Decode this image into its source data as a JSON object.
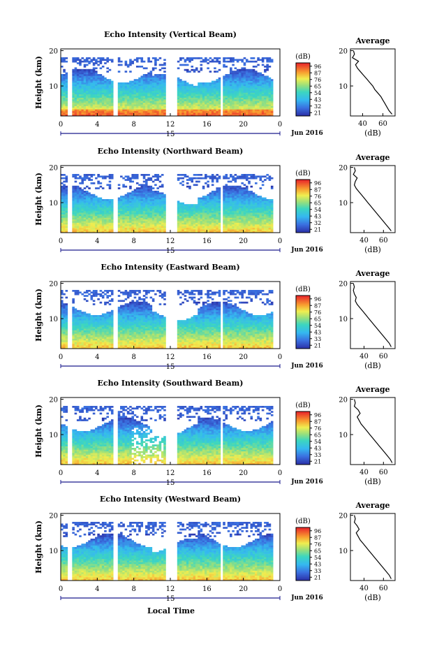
{
  "figure": {
    "xlabel": "Local Time",
    "ylabel": "Height (km)",
    "date_label": "Jun 2016",
    "day_label": "15",
    "colorbar_unit": "(dB)",
    "colorbar_ticks": [
      96,
      87,
      76,
      65,
      54,
      43,
      32,
      21
    ],
    "colorbar_ticks_2": [
      96,
      87,
      76,
      65,
      54,
      43,
      33,
      21
    ],
    "average_title": "Average",
    "average_xlabel": "(dB)"
  },
  "chart_data": [
    {
      "type": "heatmap",
      "title": "Echo Intensity (Vertical Beam)",
      "x": {
        "label": "Local Time",
        "ticks": [
          "0",
          "4",
          "8",
          "12",
          "16",
          "20",
          "0"
        ],
        "range": [
          0,
          24
        ],
        "unit": "hour"
      },
      "y": {
        "label": "Height (km)",
        "ticks": [
          10,
          20
        ],
        "range": [
          1.5,
          20.5
        ]
      },
      "colorbar": {
        "unit": "dB",
        "ticks": [
          96,
          87,
          76,
          65,
          54,
          43,
          32,
          21
        ]
      },
      "average": {
        "title": "Average",
        "xlabel": "(dB)",
        "xticks": [
          40,
          60
        ],
        "xlim": [
          28,
          72
        ],
        "height": [
          2,
          3,
          4,
          5,
          6,
          7,
          8,
          9,
          10,
          11,
          12,
          13,
          14,
          15,
          16,
          17,
          18,
          19,
          20
        ],
        "values": [
          69,
          66,
          64,
          62,
          60,
          58,
          55,
          52,
          50,
          47,
          44,
          41,
          38,
          35,
          33,
          36,
          30,
          32,
          31
        ]
      }
    },
    {
      "type": "heatmap",
      "title": "Echo Intensity (Northward Beam)",
      "x": {
        "label": "Local Time",
        "ticks": [
          "0",
          "4",
          "8",
          "12",
          "16",
          "20",
          "0"
        ],
        "range": [
          0,
          24
        ],
        "unit": "hour"
      },
      "y": {
        "label": "Height (km)",
        "ticks": [
          10,
          20
        ],
        "range": [
          1.5,
          20.5
        ]
      },
      "colorbar": {
        "unit": "dB",
        "ticks": [
          96,
          87,
          76,
          65,
          54,
          43,
          32,
          21
        ]
      },
      "average": {
        "title": "Average",
        "xlabel": "(dB)",
        "xticks": [
          40,
          60
        ],
        "xlim": [
          26,
          72
        ],
        "height": [
          2,
          3,
          4,
          5,
          6,
          7,
          8,
          9,
          10,
          11,
          12,
          13,
          14,
          15,
          16,
          17,
          18,
          19,
          20
        ],
        "values": [
          68,
          65,
          62,
          59,
          56,
          53,
          50,
          47,
          44,
          41,
          38,
          35,
          32,
          30,
          31,
          33,
          29,
          31,
          30
        ]
      }
    },
    {
      "type": "heatmap",
      "title": "Echo Intensity (Eastward Beam)",
      "x": {
        "label": "Local Time",
        "ticks": [
          "0",
          "4",
          "8",
          "12",
          "16",
          "20",
          "0"
        ],
        "range": [
          0,
          24
        ],
        "unit": "hour"
      },
      "y": {
        "label": "Height (km)",
        "ticks": [
          10,
          20
        ],
        "range": [
          1.5,
          20.5
        ]
      },
      "colorbar": {
        "unit": "dB",
        "ticks": [
          96,
          87,
          76,
          65,
          54,
          43,
          33,
          21
        ]
      },
      "average": {
        "title": "Average",
        "xlabel": "(dB)",
        "xticks": [
          40,
          60
        ],
        "xlim": [
          26,
          72
        ],
        "height": [
          2,
          3,
          4,
          5,
          6,
          7,
          8,
          9,
          10,
          11,
          12,
          13,
          14,
          15,
          16,
          17,
          18,
          19,
          20
        ],
        "values": [
          68,
          66,
          63,
          60,
          57,
          54,
          51,
          48,
          45,
          42,
          39,
          36,
          33,
          31,
          32,
          30,
          29,
          30,
          29
        ]
      }
    },
    {
      "type": "heatmap",
      "title": "Echo Intensity (Southward Beam)",
      "x": {
        "label": "Local Time",
        "ticks": [
          "0",
          "4",
          "8",
          "12",
          "16",
          "20",
          "0"
        ],
        "range": [
          0,
          24
        ],
        "unit": "hour"
      },
      "y": {
        "label": "Height (km)",
        "ticks": [
          10,
          20
        ],
        "range": [
          1.5,
          20.5
        ]
      },
      "colorbar": {
        "unit": "dB",
        "ticks": [
          96,
          87,
          76,
          65,
          54,
          43,
          33,
          21
        ]
      },
      "average": {
        "title": "Average",
        "xlabel": "(dB)",
        "xticks": [
          40,
          60
        ],
        "xlim": [
          26,
          72
        ],
        "height": [
          2,
          3,
          4,
          5,
          6,
          7,
          8,
          9,
          10,
          11,
          12,
          13,
          14,
          15,
          16,
          17,
          18,
          19,
          20
        ],
        "values": [
          69,
          67,
          64,
          61,
          58,
          55,
          52,
          49,
          46,
          43,
          40,
          37,
          35,
          33,
          36,
          34,
          30,
          31,
          30
        ]
      }
    },
    {
      "type": "heatmap",
      "title": "Echo Intensity (Westward Beam)",
      "x": {
        "label": "Local Time",
        "ticks": [
          "0",
          "4",
          "8",
          "12",
          "16",
          "20",
          "0"
        ],
        "range": [
          0,
          24
        ],
        "unit": "hour"
      },
      "y": {
        "label": "Height (km)",
        "ticks": [
          10,
          20
        ],
        "range": [
          1.5,
          20.5
        ]
      },
      "colorbar": {
        "unit": "dB",
        "ticks": [
          96,
          87,
          76,
          65,
          54,
          43,
          33,
          21
        ]
      },
      "average": {
        "title": "Average",
        "xlabel": "(dB)",
        "xticks": [
          40,
          60
        ],
        "xlim": [
          26,
          72
        ],
        "height": [
          2,
          3,
          4,
          5,
          6,
          7,
          8,
          9,
          10,
          11,
          12,
          13,
          14,
          15,
          16,
          17,
          18,
          19,
          20
        ],
        "values": [
          68,
          66,
          63,
          60,
          57,
          54,
          51,
          48,
          45,
          42,
          39,
          36,
          34,
          32,
          35,
          33,
          30,
          31,
          30
        ]
      }
    }
  ]
}
